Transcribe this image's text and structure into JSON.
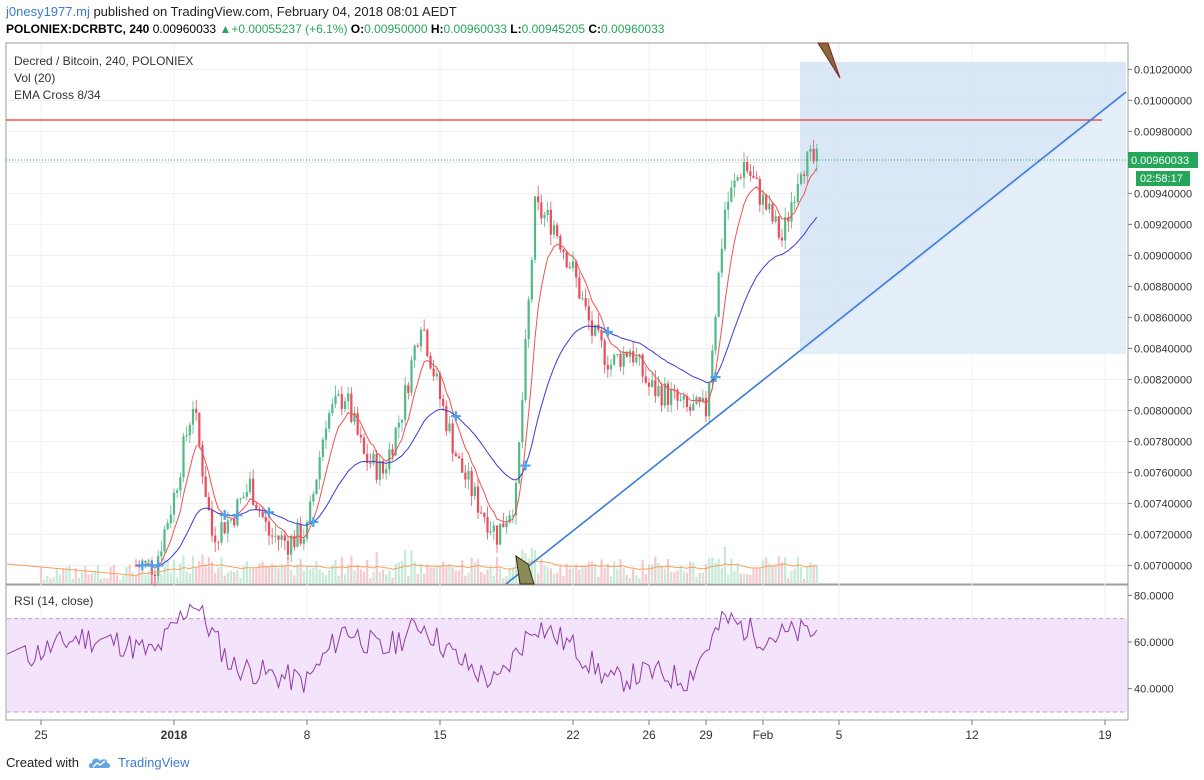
{
  "header": {
    "author": "j0nesy1977.mj",
    "published": "published on TradingView.com, February 04, 2018 08:01 AEDT",
    "symbol": "POLONIEX:DCRBTC, 240",
    "last": "0.00960033",
    "change_arrow": "▲",
    "change": "+0.00055237 (+6.1%)",
    "o_label": "O:",
    "o": "0.00950000",
    "h_label": "H:",
    "h": "0.00960033",
    "l_label": "L:",
    "l": "0.00945205",
    "c_label": "C:",
    "c": "0.00960033"
  },
  "legend": {
    "title": "Decred / Bitcoin, 240, POLONIEX",
    "vol": "Vol (20)",
    "ema": "EMA Cross 8/34",
    "rsi": "RSI (14, close)"
  },
  "price_label": "0.00960033",
  "countdown": "02:58:17",
  "footer": {
    "created": "Created with",
    "brand": "TradingView"
  },
  "colors": {
    "up": "#53b987",
    "down": "#eb4d5c",
    "ema_fast": "#f05252",
    "ema_slow": "#3b3bd6",
    "trendline": "#3a7bd5",
    "resistance": "#e53935",
    "rsi_line": "#8e3ca8",
    "rsi_band": "#f3e3fb",
    "projection": "#dce9f7"
  },
  "chart_data": [
    {
      "type": "candlestick",
      "title": "Decred / Bitcoin, 240, POLONIEX",
      "y_ticks": [
        "0.01020000",
        "0.01000000",
        "0.00980000",
        "0.00960000",
        "0.00940000",
        "0.00920000",
        "0.00900000",
        "0.00880000",
        "0.00860000",
        "0.00840000",
        "0.00820000",
        "0.00800000",
        "0.00780000",
        "0.00760000",
        "0.00740000",
        "0.00720000",
        "0.00700000"
      ],
      "y_tick_values": [
        0.0102,
        0.01,
        0.0098,
        0.0096,
        0.0094,
        0.0092,
        0.009,
        0.0088,
        0.0086,
        0.0084,
        0.0082,
        0.008,
        0.0078,
        0.0076,
        0.0074,
        0.0072,
        0.007
      ],
      "ylim": [
        0.00688,
        0.01037
      ],
      "x_ticks": [
        "25",
        "2018",
        "8",
        "15",
        "22",
        "26",
        "29",
        "Feb",
        "5",
        "12",
        "19"
      ],
      "x_tick_dates": [
        "2017-12-25",
        "2018-01-01",
        "2018-01-08",
        "2018-01-15",
        "2018-01-22",
        "2018-01-26",
        "2018-01-29",
        "2018-02-01",
        "2018-02-05",
        "2018-02-12",
        "2018-02-19"
      ],
      "series": [
        {
          "name": "close",
          "x": [
            "2017-12-31",
            "2018-01-01",
            "2018-01-02",
            "2018-01-03",
            "2018-01-04",
            "2018-01-05",
            "2018-01-06",
            "2018-01-07",
            "2018-01-08",
            "2018-01-09",
            "2018-01-10",
            "2018-01-11",
            "2018-01-12",
            "2018-01-13",
            "2018-01-14",
            "2018-01-15",
            "2018-01-16",
            "2018-01-17",
            "2018-01-18",
            "2018-01-19",
            "2018-01-20",
            "2018-01-21",
            "2018-01-22",
            "2018-01-23",
            "2018-01-24",
            "2018-01-25",
            "2018-01-26",
            "2018-01-27",
            "2018-01-28",
            "2018-01-29",
            "2018-01-30",
            "2018-01-31",
            "2018-02-01",
            "2018-02-02",
            "2018-02-03"
          ],
          "values": [
            0.007,
            0.00745,
            0.00805,
            0.0072,
            0.0073,
            0.00752,
            0.0072,
            0.00715,
            0.00722,
            0.00795,
            0.0081,
            0.0077,
            0.0076,
            0.008,
            0.0086,
            0.00808,
            0.00765,
            0.0074,
            0.0072,
            0.00745,
            0.0093,
            0.0092,
            0.0089,
            0.0085,
            0.0083,
            0.0084,
            0.00815,
            0.0081,
            0.008,
            0.008,
            0.0093,
            0.0096,
            0.00935,
            0.0091,
            0.0096
          ]
        },
        {
          "name": "EMA 8"
        },
        {
          "name": "EMA 34"
        }
      ],
      "resistance_level": 0.00985,
      "current_price": 0.00960033
    },
    {
      "type": "bar",
      "title": "Vol (20)",
      "series": [
        {
          "name": "Vol (20)"
        }
      ]
    },
    {
      "type": "line",
      "title": "RSI (14, close)",
      "y_ticks": [
        "80.0000",
        "60.0000",
        "40.0000"
      ],
      "y_tick_values": [
        80,
        60,
        40
      ],
      "ylim": [
        27,
        84
      ],
      "band": [
        30,
        70
      ],
      "series": [
        {
          "name": "RSI (14, close)",
          "x": [
            "2017-12-25",
            "2017-12-27",
            "2017-12-29",
            "2017-12-31",
            "2018-01-02",
            "2018-01-04",
            "2018-01-06",
            "2018-01-08",
            "2018-01-10",
            "2018-01-12",
            "2018-01-14",
            "2018-01-16",
            "2018-01-18",
            "2018-01-20",
            "2018-01-22",
            "2018-01-24",
            "2018-01-26",
            "2018-01-28",
            "2018-01-30",
            "2018-02-01",
            "2018-02-03"
          ],
          "values": [
            56,
            62,
            60,
            55,
            78,
            50,
            46,
            43,
            66,
            56,
            68,
            52,
            42,
            68,
            58,
            43,
            47,
            44,
            70,
            62,
            64
          ]
        }
      ]
    }
  ]
}
